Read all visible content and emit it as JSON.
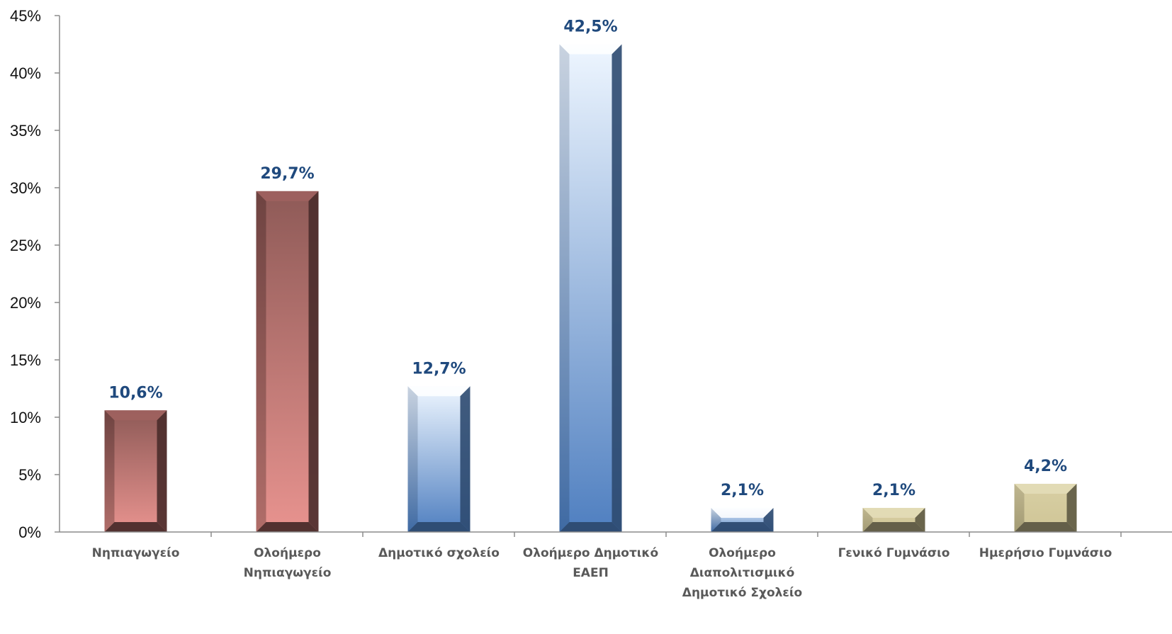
{
  "chart_data": {
    "type": "bar",
    "categories": [
      [
        "Νηπιαγωγείο"
      ],
      [
        "Ολοήμερο",
        "Νηπιαγωγείο"
      ],
      [
        "Δημοτικό σχολείο"
      ],
      [
        "Ολοήμερο Δημοτικό",
        "ΕΑΕΠ"
      ],
      [
        "Ολοήμερο",
        "Διαπολιτισμικό",
        "Δημοτικό Σχολείο"
      ],
      [
        "Γενικό Γυμνάσιο"
      ],
      [
        "Ημερήσιο Γυμνάσιο"
      ]
    ],
    "values": [
      10.6,
      29.7,
      12.7,
      42.5,
      2.1,
      2.1,
      4.2
    ],
    "data_labels": [
      "10,6%",
      "29,7%",
      "12,7%",
      "42,5%",
      "2,1%",
      "2,1%",
      "4,2%"
    ],
    "y_ticks": [
      0,
      5,
      10,
      15,
      20,
      25,
      30,
      35,
      40,
      45
    ],
    "y_tick_labels": [
      "0%",
      "5%",
      "10%",
      "15%",
      "20%",
      "25%",
      "30%",
      "35%",
      "40%",
      "45%"
    ],
    "ylim": [
      0,
      45
    ],
    "grid": false,
    "legend": "none",
    "bar_styles": [
      "red",
      "red",
      "blue",
      "blue",
      "blue",
      "tan",
      "tan"
    ],
    "colors": {
      "red_top": "#8e5a57",
      "red_bottom": "#e8938f",
      "red_dark": "#4a2c2b",
      "blue_top": "#eef6ff",
      "blue_bottom": "#4f7fc0",
      "blue_dark": "#2d4a70",
      "tan_top": "#d8cfa4",
      "tan_bottom": "#cfc596",
      "tan_dark": "#5e5a44",
      "label": "#1f497d",
      "axis": "#8c8c8c"
    }
  }
}
